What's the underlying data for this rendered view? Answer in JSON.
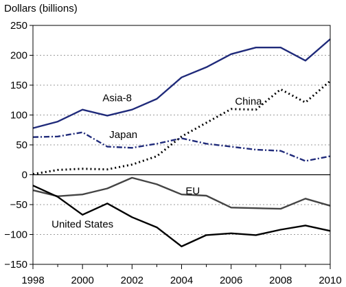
{
  "chart_data": {
    "type": "line",
    "ylabel": "Dollars (billions)",
    "x": [
      1998,
      1999,
      2000,
      2001,
      2002,
      2003,
      2004,
      2005,
      2006,
      2007,
      2008,
      2009,
      2010
    ],
    "xticks": [
      1998,
      2000,
      2002,
      2004,
      2006,
      2008,
      2010
    ],
    "xlim": [
      1998,
      2010
    ],
    "yticks": [
      250,
      200,
      150,
      100,
      50,
      0,
      -50,
      -100,
      -150
    ],
    "ylim": [
      -150,
      250
    ],
    "grid": "horizontal dotted",
    "series": [
      {
        "name": "Asia-8",
        "color": "#1f2a7a",
        "style": "solid",
        "values": [
          78,
          89,
          109,
          99,
          109,
          127,
          163,
          180,
          202,
          213,
          213,
          191,
          227
        ]
      },
      {
        "name": "China",
        "color": "#000000",
        "style": "dotted",
        "values": [
          1,
          8,
          10,
          9,
          17,
          31,
          64,
          87,
          110,
          109,
          143,
          121,
          157
        ]
      },
      {
        "name": "Japan",
        "color": "#1f2a7a",
        "style": "dashdot",
        "values": [
          63,
          64,
          71,
          47,
          45,
          52,
          61,
          52,
          47,
          42,
          40,
          23,
          31
        ]
      },
      {
        "name": "EU",
        "color": "#444444",
        "style": "solid",
        "values": [
          -26,
          -36,
          -33,
          -23,
          -5,
          -16,
          -33,
          -35,
          -55,
          -56,
          -57,
          -40,
          -52
        ]
      },
      {
        "name": "United States",
        "color": "#000000",
        "style": "solid",
        "values": [
          -18,
          -37,
          -67,
          -48,
          -71,
          -88,
          -120,
          -101,
          -98,
          -101,
          -92,
          -85,
          -94
        ]
      }
    ],
    "annotations": [
      {
        "series": "Asia-8",
        "x": 2001.4,
        "y": 129
      },
      {
        "series": "China",
        "x": 2006.7,
        "y": 123
      },
      {
        "series": "Japan",
        "x": 2001.65,
        "y": 67
      },
      {
        "series": "EU",
        "x": 2004.45,
        "y": -27
      },
      {
        "series": "United States",
        "x": 2000.0,
        "y": -83
      }
    ]
  }
}
